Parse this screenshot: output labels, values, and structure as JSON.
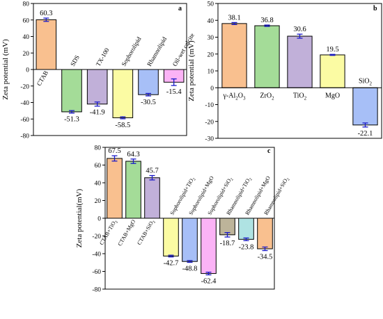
{
  "chart_data": [
    {
      "panel": "a",
      "type": "bar",
      "ylabel": "Zeta potential (mV)",
      "ylim": [
        -80,
        80
      ],
      "yticks": [
        -80,
        -60,
        -40,
        -20,
        0,
        20,
        40,
        60,
        80
      ],
      "categories": [
        "CTAB",
        "SDS",
        "TX-100",
        "Sophorolipid",
        "Rhamnolipid",
        "Oil-wet calcite"
      ],
      "values": [
        60.3,
        -51.3,
        -41.9,
        -58.5,
        -30.5,
        -15.4
      ],
      "value_labels": [
        "60.3",
        "-51.3",
        "-41.9",
        "-58.5",
        "-30.5",
        "-15.4"
      ],
      "errors": [
        2.0,
        1.5,
        2.5,
        1.2,
        1.5,
        4.0
      ],
      "colors": [
        "#f9c08f",
        "#a4dc98",
        "#c1b0d9",
        "#fbfba3",
        "#a7bff7",
        "#fbb3f6"
      ]
    },
    {
      "panel": "b",
      "type": "bar",
      "ylabel": "Zeta potential (mV)",
      "ylim": [
        -30,
        50
      ],
      "yticks": [
        -30,
        -20,
        -10,
        0,
        10,
        20,
        30,
        40,
        50
      ],
      "categories": [
        [
          "γ-Al",
          "2",
          "O",
          "3"
        ],
        [
          "ZrO",
          "2"
        ],
        [
          "TiO",
          "2"
        ],
        [
          "MgO"
        ],
        [
          "SiO",
          "2"
        ]
      ],
      "values": [
        38.1,
        36.8,
        30.6,
        19.5,
        -22.1
      ],
      "value_labels": [
        "38.1",
        "36.8",
        "30.6",
        "19.5",
        "-22.1"
      ],
      "errors": [
        0.6,
        0.4,
        1.2,
        0.3,
        1.2
      ],
      "colors": [
        "#f9c08f",
        "#a4dc98",
        "#c1b0d9",
        "#fbfba3",
        "#a7bff7"
      ]
    },
    {
      "panel": "c",
      "type": "bar",
      "ylabel": "Zeta potential(mV)",
      "ylim": [
        -80,
        80
      ],
      "yticks": [
        -80,
        -60,
        -40,
        -20,
        0,
        20,
        40,
        60,
        80
      ],
      "categories": [
        [
          "CTAB+TiO",
          "2"
        ],
        [
          "CTAB+MgO"
        ],
        [
          "CTAB+SiO",
          "2"
        ],
        [
          "Sophorolipid+TiO",
          "2"
        ],
        [
          "Sophorolipid+MgO"
        ],
        [
          "Sophorolipid+SiO",
          "2"
        ],
        [
          "Rhamnolipid+TiO",
          "2"
        ],
        [
          "Rhamnolipid+MgO"
        ],
        [
          "Rhamnolipid+SiO",
          "2"
        ]
      ],
      "values": [
        67.5,
        64.3,
        45.7,
        -42.7,
        -48.8,
        -62.4,
        -18.7,
        -23.8,
        -34.5
      ],
      "value_labels": [
        "67.5",
        "64.3",
        "45.7",
        "-42.7",
        "-48.8",
        "-62.4",
        "-18.7",
        "-23.8",
        "-34.5"
      ],
      "errors": [
        3.0,
        2.5,
        2.5,
        1.0,
        1.0,
        1.5,
        2.5,
        1.5,
        2.0
      ],
      "colors": [
        "#f9c08f",
        "#a4dc98",
        "#c1b0d9",
        "#fbfba3",
        "#a7bff7",
        "#fbb3f6",
        "#bdb49a",
        "#afe3e3",
        "#f9c08f"
      ]
    }
  ]
}
